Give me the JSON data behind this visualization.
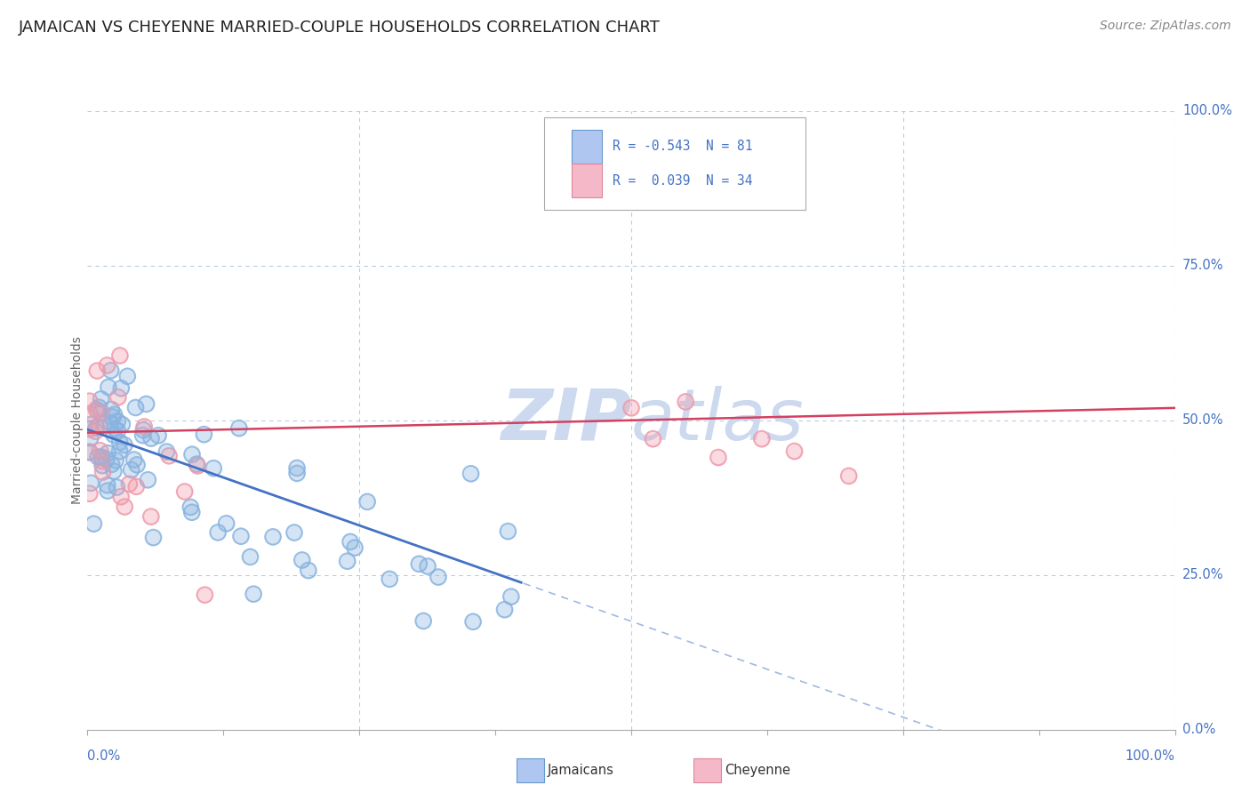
{
  "title": "JAMAICAN VS CHEYENNE MARRIED-COUPLE HOUSEHOLDS CORRELATION CHART",
  "source": "Source: ZipAtlas.com",
  "ylabel": "Married-couple Households",
  "jamaican_color": "#89b4e0",
  "cheyenne_color": "#f09aaa",
  "blue_line_color": "#4472c4",
  "pink_line_color": "#d44060",
  "watermark": "ZIPatlas",
  "watermark_color": "#ccd9ee",
  "xlim": [
    0,
    100
  ],
  "ylim": [
    0,
    100
  ],
  "grid_color": "#b8cce0",
  "background_color": "#ffffff",
  "title_color": "#222222",
  "axis_label_color": "#4472c4",
  "title_fontsize": 13,
  "source_fontsize": 10,
  "legend_box_color": "#aec6f0",
  "legend_pink_color": "#f4b8c8",
  "r_jamaican": -0.543,
  "n_jamaican": 81,
  "r_cheyenne": 0.039,
  "n_cheyenne": 34
}
